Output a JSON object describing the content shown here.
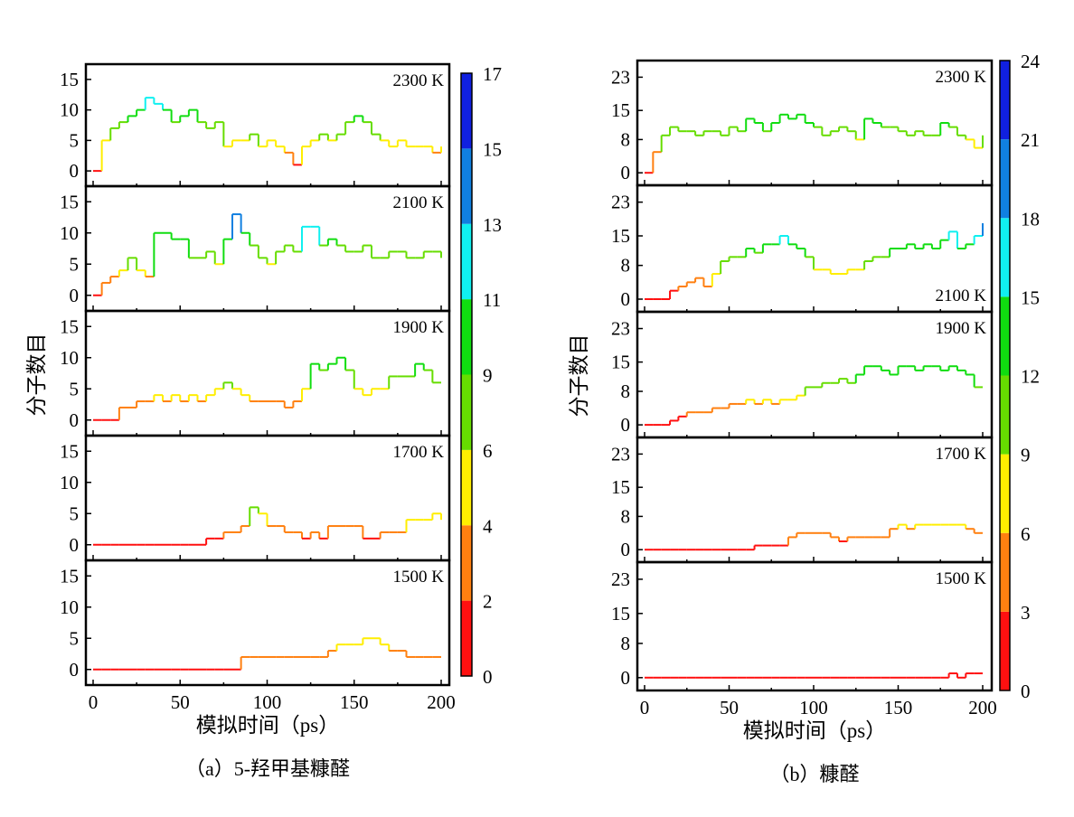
{
  "chart_data": [
    {
      "type": "line",
      "caption": "（a）5-羟甲基糠醛",
      "xlabel": "模拟时间（ps）",
      "ylabel": "分子数目",
      "xlim": [
        0,
        200
      ],
      "ylim": [
        -2.5,
        17.5
      ],
      "xticks": [
        "0",
        "50",
        "100",
        "150",
        "200"
      ],
      "yticks": [
        "0",
        "5",
        "10",
        "15"
      ],
      "colorbar": {
        "ticks": [
          "0",
          "2",
          "4",
          "6",
          "9",
          "11",
          "13",
          "15",
          "17"
        ],
        "bounds": [
          0,
          2,
          4,
          6,
          9,
          11,
          13,
          15,
          17
        ],
        "colors": [
          "#ff1010",
          "#ff8010",
          "#ffee00",
          "#66dd00",
          "#10dd10",
          "#10f0f0",
          "#1080e0",
          "#1020e0"
        ]
      },
      "x": [
        0,
        5,
        10,
        15,
        20,
        25,
        30,
        35,
        40,
        45,
        50,
        55,
        60,
        65,
        70,
        75,
        80,
        85,
        90,
        95,
        100,
        105,
        110,
        115,
        120,
        125,
        130,
        135,
        140,
        145,
        150,
        155,
        160,
        165,
        170,
        175,
        180,
        185,
        190,
        195,
        200
      ],
      "panels": [
        {
          "label": "2300 K",
          "values": [
            0,
            5,
            7,
            8,
            9,
            10,
            12,
            11,
            10,
            8,
            9,
            10,
            8,
            7,
            8,
            4,
            5,
            5,
            6,
            4,
            5,
            4,
            3,
            1,
            4,
            5,
            6,
            5,
            6,
            8,
            9,
            8,
            6,
            5,
            4,
            5,
            4,
            4,
            4,
            3,
            4
          ]
        },
        {
          "label": "2100 K",
          "values": [
            0,
            2,
            3,
            4,
            6,
            4,
            3,
            10,
            10,
            9,
            9,
            6,
            6,
            7,
            5,
            9,
            13,
            10,
            8,
            6,
            5,
            7,
            8,
            7,
            11,
            11,
            8,
            9,
            8,
            7,
            7,
            8,
            6,
            6,
            7,
            7,
            6,
            6,
            7,
            7,
            6
          ]
        },
        {
          "label": "1900 K",
          "values": [
            0,
            0,
            0,
            2,
            2,
            3,
            3,
            4,
            3,
            4,
            3,
            4,
            3,
            4,
            5,
            6,
            5,
            4,
            3,
            3,
            3,
            3,
            2,
            3,
            5,
            9,
            8,
            9,
            10,
            8,
            5,
            4,
            5,
            5,
            7,
            7,
            7,
            9,
            8,
            6,
            6
          ]
        },
        {
          "label": "1700 K",
          "values": [
            0,
            0,
            0,
            0,
            0,
            0,
            0,
            0,
            0,
            0,
            0,
            0,
            0,
            1,
            1,
            2,
            2,
            3,
            6,
            5,
            3,
            3,
            2,
            2,
            1,
            2,
            1,
            3,
            3,
            3,
            3,
            1,
            1,
            2,
            2,
            2,
            4,
            4,
            4,
            5,
            4
          ]
        },
        {
          "label": "1500 K",
          "values": [
            0,
            0,
            0,
            0,
            0,
            0,
            0,
            0,
            0,
            0,
            0,
            0,
            0,
            0,
            0,
            0,
            0,
            2,
            2,
            2,
            2,
            2,
            2,
            2,
            2,
            2,
            2,
            3,
            4,
            4,
            4,
            5,
            5,
            4,
            3,
            3,
            2,
            2,
            2,
            2,
            2
          ]
        }
      ]
    },
    {
      "type": "line",
      "caption": "（b）糠醛",
      "xlabel": "模拟时间（ps）",
      "ylabel": "分子数目",
      "xlim": [
        0,
        200
      ],
      "ylim": [
        -3,
        27
      ],
      "xticks": [
        "0",
        "50",
        "100",
        "150",
        "200"
      ],
      "yticks": [
        "0",
        "8",
        "15",
        "23"
      ],
      "colorbar": {
        "ticks": [
          "0",
          "3",
          "6",
          "9",
          "12",
          "15",
          "18",
          "21",
          "24"
        ],
        "bounds": [
          0,
          3,
          6,
          9,
          12,
          15,
          18,
          21,
          24
        ],
        "colors": [
          "#ff1010",
          "#ff8010",
          "#ffee00",
          "#66dd00",
          "#10dd10",
          "#10f0f0",
          "#1080e0",
          "#1020e0"
        ]
      },
      "x": [
        0,
        5,
        10,
        15,
        20,
        25,
        30,
        35,
        40,
        45,
        50,
        55,
        60,
        65,
        70,
        75,
        80,
        85,
        90,
        95,
        100,
        105,
        110,
        115,
        120,
        125,
        130,
        135,
        140,
        145,
        150,
        155,
        160,
        165,
        170,
        175,
        180,
        185,
        190,
        195,
        200
      ],
      "panels": [
        {
          "label": "2300 K",
          "values": [
            0,
            5,
            9,
            11,
            10,
            10,
            9,
            10,
            10,
            9,
            11,
            10,
            13,
            12,
            10,
            12,
            14,
            13,
            14,
            12,
            11,
            9,
            10,
            11,
            10,
            8,
            13,
            12,
            11,
            11,
            10,
            9,
            10,
            9,
            9,
            12,
            11,
            9,
            8,
            6,
            9
          ]
        },
        {
          "label": "2100 K",
          "values": [
            0,
            0,
            0,
            2,
            3,
            4,
            5,
            3,
            6,
            9,
            10,
            10,
            12,
            11,
            13,
            13,
            15,
            13,
            12,
            10,
            7,
            7,
            6,
            6,
            7,
            7,
            9,
            10,
            10,
            12,
            12,
            13,
            12,
            13,
            12,
            14,
            16,
            12,
            13,
            15,
            18
          ]
        },
        {
          "label": "1900 K",
          "values": [
            0,
            0,
            0,
            1,
            2,
            3,
            3,
            3,
            4,
            4,
            5,
            5,
            6,
            5,
            6,
            5,
            6,
            6,
            7,
            9,
            9,
            10,
            10,
            11,
            10,
            12,
            14,
            14,
            13,
            12,
            14,
            14,
            13,
            14,
            14,
            13,
            14,
            13,
            12,
            9,
            9
          ]
        },
        {
          "label": "1700 K",
          "values": [
            0,
            0,
            0,
            0,
            0,
            0,
            0,
            0,
            0,
            0,
            0,
            0,
            0,
            1,
            1,
            1,
            1,
            3,
            4,
            4,
            4,
            4,
            3,
            2,
            3,
            3,
            3,
            3,
            3,
            5,
            6,
            5,
            6,
            6,
            6,
            6,
            6,
            6,
            5,
            4,
            4
          ]
        },
        {
          "label": "1500 K",
          "values": [
            0,
            0,
            0,
            0,
            0,
            0,
            0,
            0,
            0,
            0,
            0,
            0,
            0,
            0,
            0,
            0,
            0,
            0,
            0,
            0,
            0,
            0,
            0,
            0,
            0,
            0,
            0,
            0,
            0,
            0,
            0,
            0,
            0,
            0,
            0,
            0,
            1,
            0,
            1,
            1,
            1
          ]
        }
      ]
    }
  ]
}
